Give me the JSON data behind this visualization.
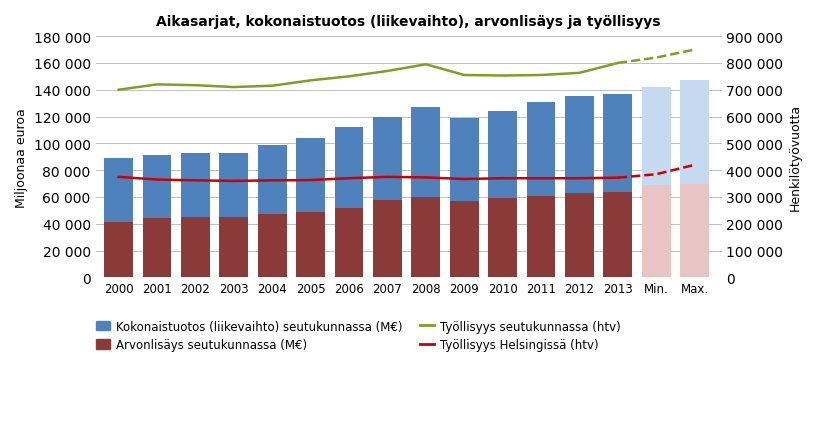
{
  "title": "Aikasarjat, kokonaistuotos (liikevaihto), arvonlisäys ja työllisyys",
  "years": [
    "2000",
    "2001",
    "2002",
    "2003",
    "2004",
    "2005",
    "2006",
    "2007",
    "2008",
    "2009",
    "2010",
    "2011",
    "2012",
    "2013",
    "Min.",
    "Max."
  ],
  "kokonaistuotos": [
    89000,
    91000,
    93000,
    93000,
    99000,
    104000,
    112000,
    120000,
    127000,
    119000,
    124000,
    131000,
    135000,
    137000,
    142000,
    147000
  ],
  "arvonlisays": [
    41000,
    44000,
    45000,
    45000,
    47000,
    49000,
    52000,
    58000,
    60000,
    57000,
    59000,
    61000,
    63000,
    64000,
    69000,
    70000
  ],
  "tyollisyys_seutukunta": [
    700000,
    720000,
    717000,
    710000,
    715000,
    735000,
    750000,
    770000,
    795000,
    755000,
    753000,
    755000,
    763000,
    800000,
    820000,
    850000
  ],
  "tyollisyys_helsinki": [
    375000,
    365000,
    362000,
    360000,
    362000,
    363000,
    370000,
    375000,
    373000,
    367000,
    370000,
    370000,
    370000,
    372000,
    385000,
    420000
  ],
  "bar_color_kokonaistuotos": "#4F81BD",
  "bar_color_arvonlisays": "#8B3A3A",
  "bar_color_kokonaistuotos_light": "#C5D9F1",
  "bar_color_arvonlisays_light": "#E8C4C4",
  "line_color_seutukunta": "#7DA024",
  "line_color_helsinki": "#CC0000",
  "ylabel_left": "Miljoonaa euroa",
  "ylabel_right": "Henkilötyövuotta",
  "ylim_left": [
    0,
    180000
  ],
  "ylim_right": [
    0,
    900000
  ],
  "yticks_left": [
    0,
    20000,
    40000,
    60000,
    80000,
    100000,
    120000,
    140000,
    160000,
    180000
  ],
  "yticks_right": [
    0,
    100000,
    200000,
    300000,
    400000,
    500000,
    600000,
    700000,
    800000,
    900000
  ],
  "n_regular": 14,
  "legend_labels": [
    "Kokonaistuotos (liikevaihto) seutukunnassa (M€)",
    "Arvonlisäys seutukunnassa (M€)",
    "Työllisyys seutukunnassa (htv)",
    "Työllisyys Helsingissä (htv)"
  ]
}
